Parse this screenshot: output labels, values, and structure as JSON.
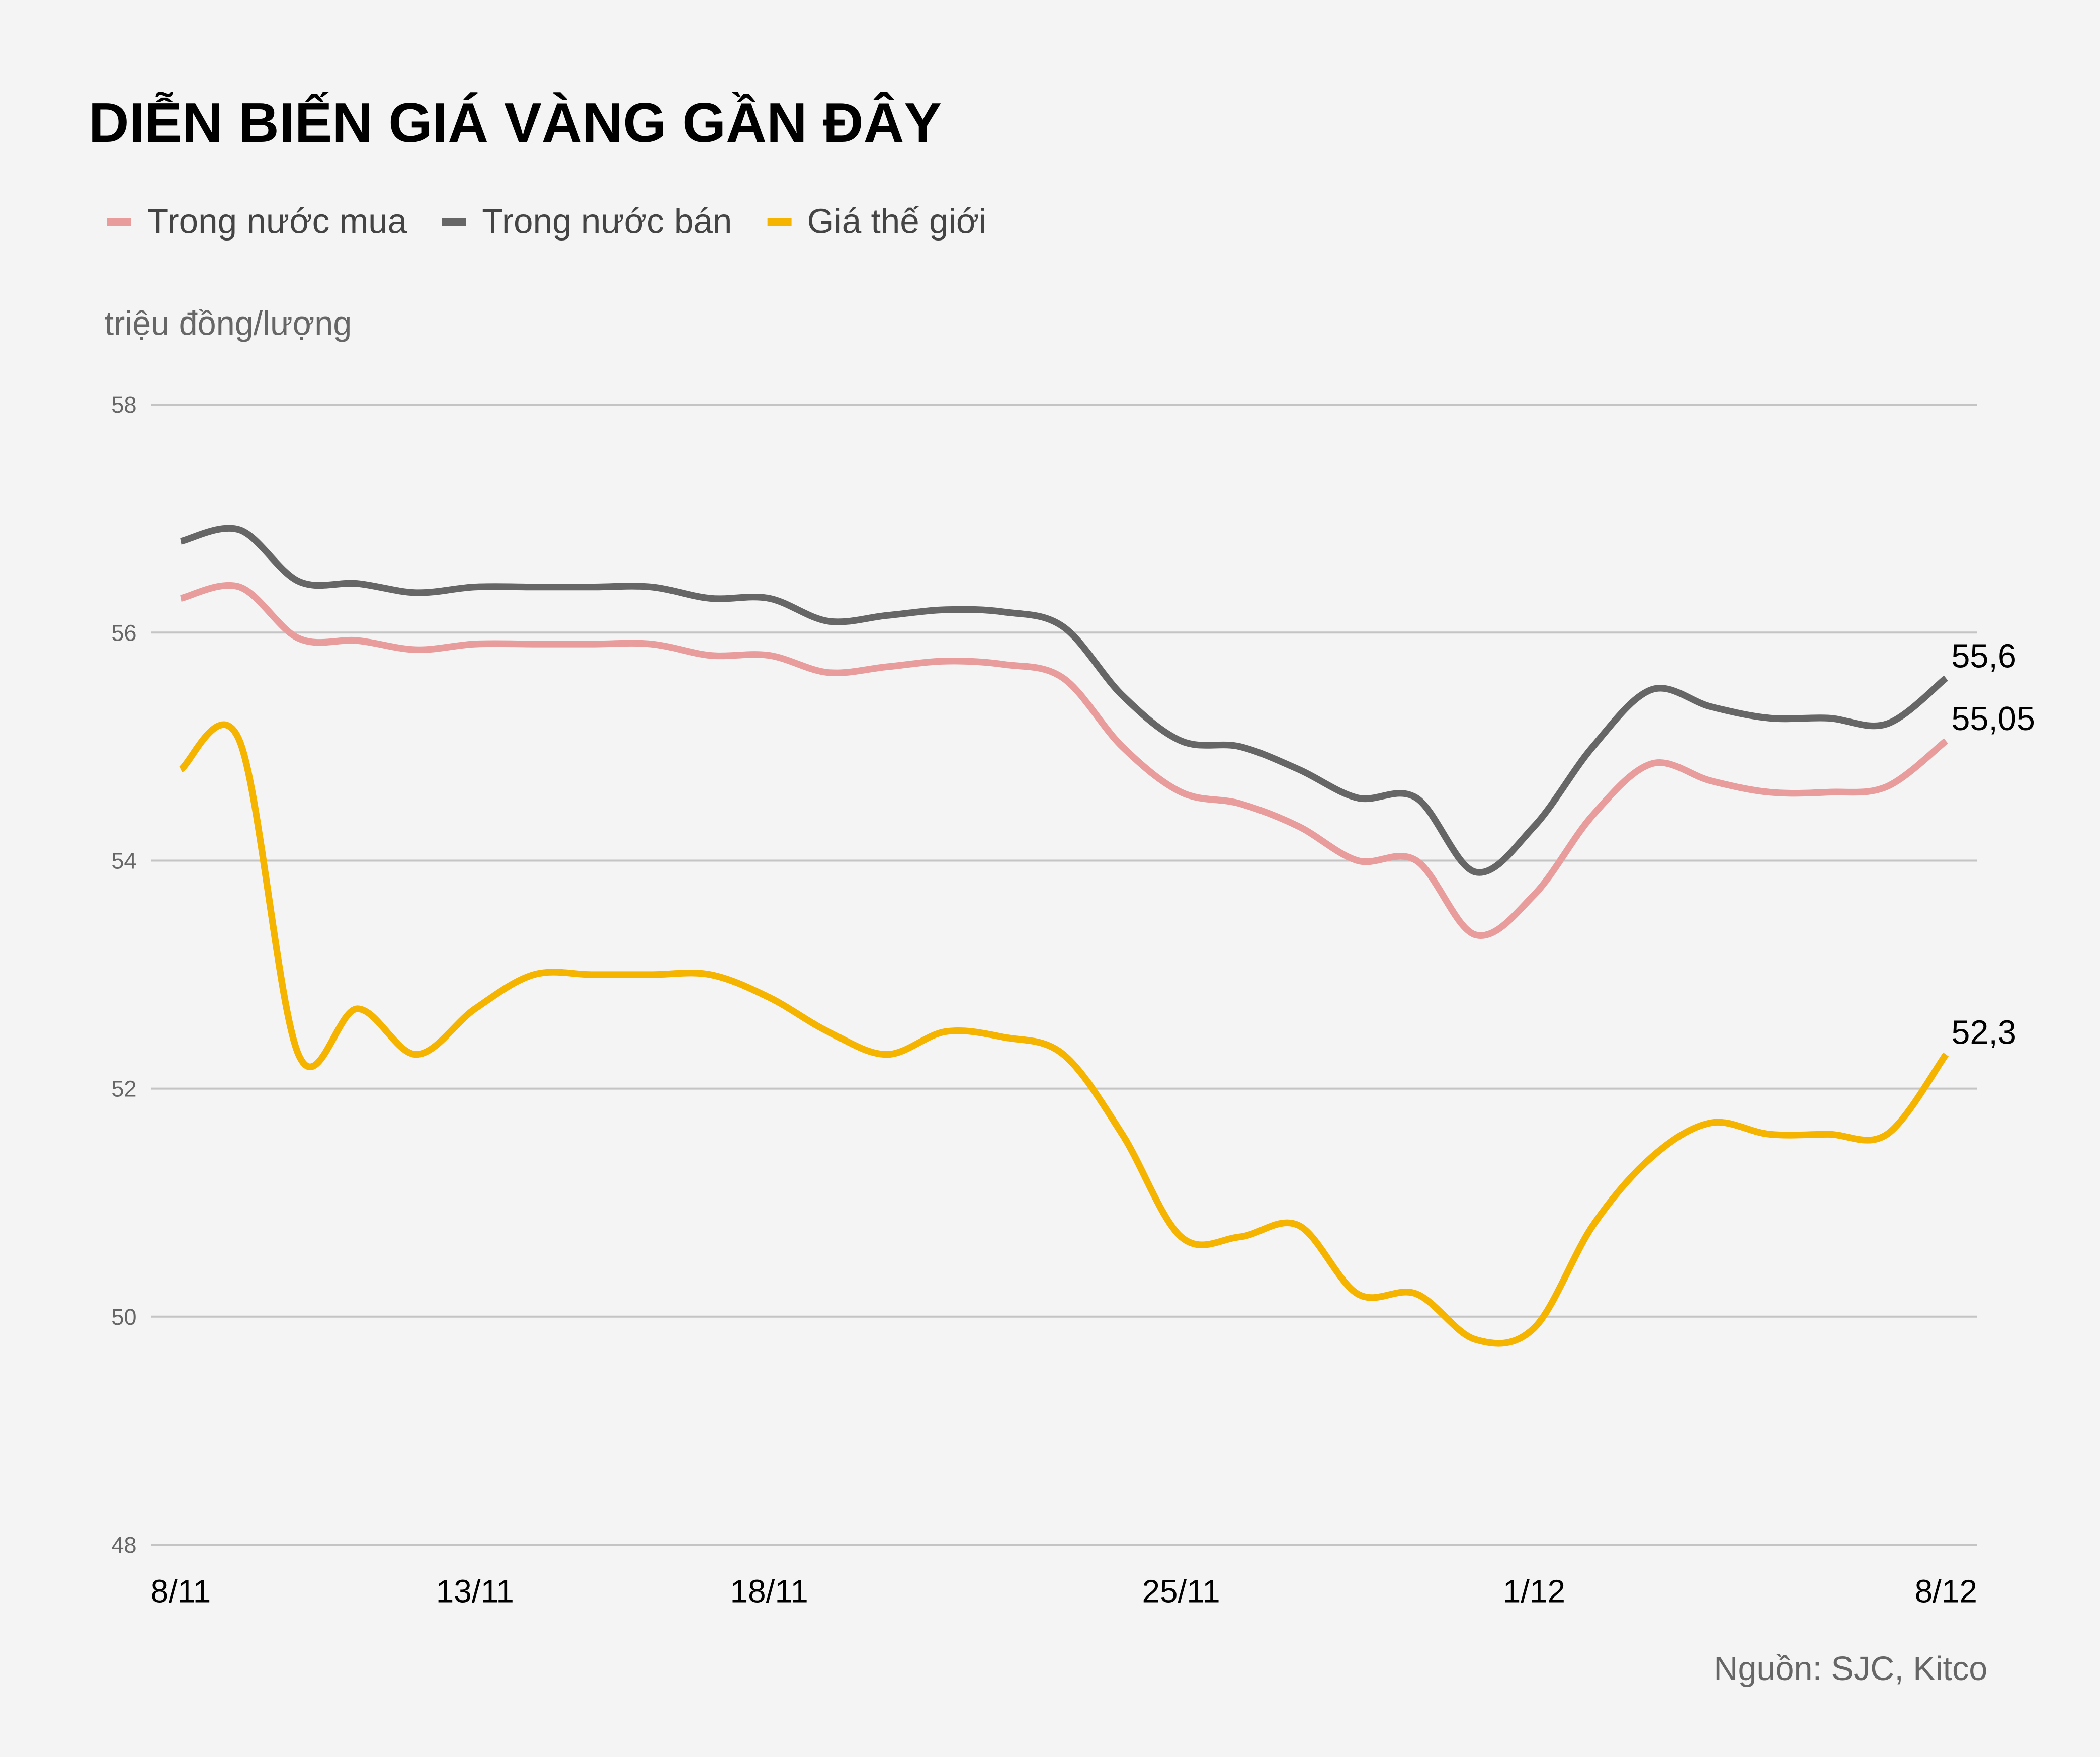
{
  "chart_data": {
    "type": "line",
    "title": "DIỄN BIẾN GIÁ VÀNG GẦN ĐÂY",
    "ylabel": "triệu đồng/lượng",
    "source": "Nguồn: SJC, Kitco",
    "ylim": [
      48,
      58
    ],
    "yticks": [
      "48",
      "50",
      "52",
      "54",
      "56",
      "58"
    ],
    "xticks": [
      {
        "label": "8/11",
        "day": 0
      },
      {
        "label": "13/11",
        "day": 5
      },
      {
        "label": "18/11",
        "day": 10
      },
      {
        "label": "25/11",
        "day": 17
      },
      {
        "label": "1/12",
        "day": 23
      },
      {
        "label": "8/12",
        "day": 30
      }
    ],
    "x": [
      "8/11",
      "9/11",
      "10/11",
      "11/11",
      "12/11",
      "13/11",
      "14/11",
      "15/11",
      "16/11",
      "17/11",
      "18/11",
      "19/11",
      "20/11",
      "21/11",
      "22/11",
      "23/11",
      "24/11",
      "25/11",
      "26/11",
      "27/11",
      "28/11",
      "29/11",
      "30/11",
      "1/12",
      "2/12",
      "3/12",
      "4/12",
      "5/12",
      "6/12",
      "7/12",
      "8/12"
    ],
    "grid": true,
    "legend": "top-left",
    "series": [
      {
        "name": "Trong nước mua",
        "color": "#e89c9c",
        "end_label": "55,05",
        "values": [
          56.3,
          56.4,
          55.95,
          55.93,
          55.85,
          55.9,
          55.9,
          55.9,
          55.9,
          55.8,
          55.8,
          55.65,
          55.7,
          55.75,
          55.72,
          55.6,
          55.0,
          54.6,
          54.5,
          54.3,
          54.0,
          54.0,
          53.35,
          53.7,
          54.4,
          54.85,
          54.7,
          54.6,
          54.6,
          54.65,
          55.05
        ]
      },
      {
        "name": "Trong nước bán",
        "color": "#666666",
        "end_label": "55,6",
        "values": [
          56.8,
          56.9,
          56.45,
          56.43,
          56.35,
          56.4,
          56.4,
          56.4,
          56.4,
          56.3,
          56.3,
          56.1,
          56.15,
          56.2,
          56.18,
          56.05,
          55.45,
          55.05,
          55.0,
          54.8,
          54.55,
          54.55,
          53.9,
          54.3,
          55.0,
          55.5,
          55.35,
          55.25,
          55.25,
          55.2,
          55.6
        ]
      },
      {
        "name": "Giá thế giới",
        "color": "#f4b400",
        "end_label": "52,3",
        "values": [
          54.8,
          55.05,
          52.3,
          52.7,
          52.3,
          52.7,
          53.0,
          53.0,
          53.0,
          53.0,
          52.8,
          52.5,
          52.3,
          52.5,
          52.45,
          52.3,
          51.6,
          50.7,
          50.7,
          50.8,
          50.2,
          50.2,
          49.8,
          49.9,
          50.8,
          51.4,
          51.7,
          51.6,
          51.6,
          51.6,
          52.3
        ]
      }
    ]
  }
}
